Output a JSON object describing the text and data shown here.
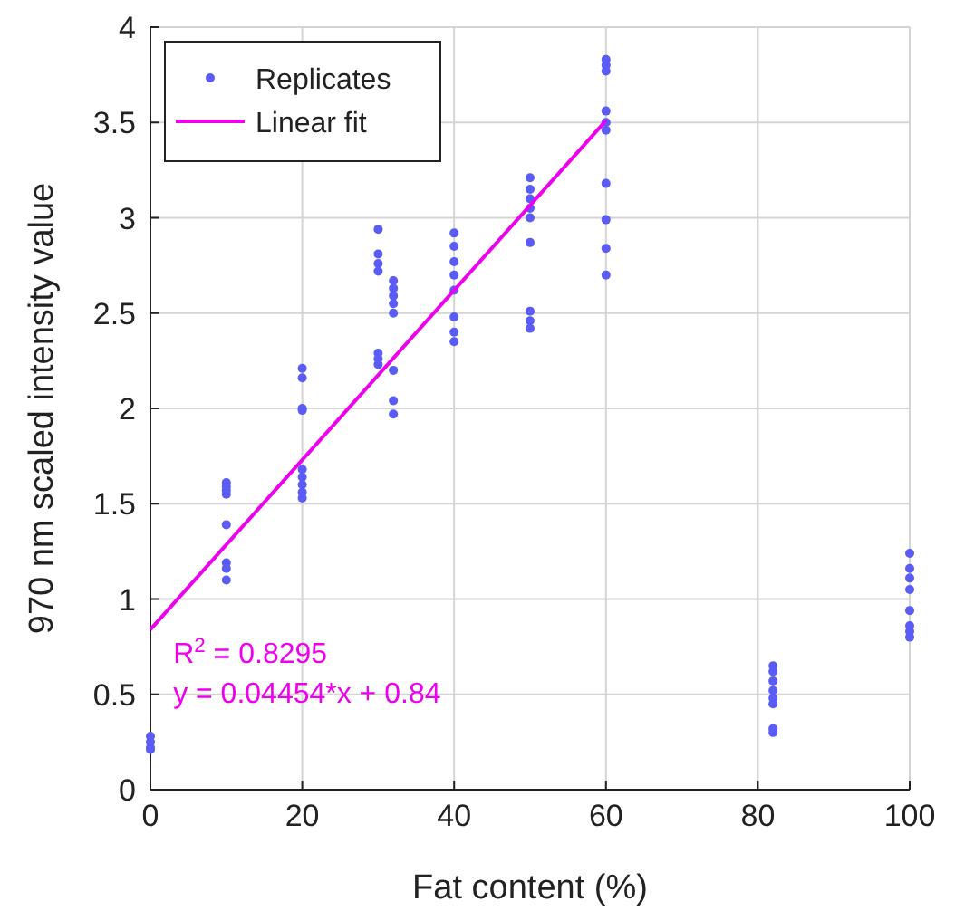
{
  "chart_data": {
    "type": "scatter",
    "xlabel": "Fat content (%)",
    "ylabel": "970 nm scaled intensity value",
    "xlim": [
      0,
      100
    ],
    "xticks": [
      0,
      20,
      40,
      60,
      80,
      100
    ],
    "ylim": [
      0,
      4
    ],
    "yticks": [
      0,
      0.5,
      1,
      1.5,
      2,
      2.5,
      3,
      3.5,
      4
    ],
    "grid": true,
    "legend": "top left",
    "series": [
      {
        "name": "Replicates",
        "marker": "circle",
        "color": "#5b5bf5",
        "x": [
          0,
          0,
          0,
          0,
          10,
          10,
          10,
          10,
          10,
          10,
          10,
          10,
          20,
          20,
          20,
          20,
          20,
          20,
          20,
          20,
          20,
          30,
          30,
          30,
          30,
          30,
          30,
          30,
          32,
          32,
          32,
          32,
          32,
          32,
          32,
          32,
          40,
          40,
          40,
          40,
          40,
          40,
          40,
          40,
          50,
          50,
          50,
          50,
          50,
          50,
          50,
          50,
          50,
          60,
          60,
          60,
          60,
          60,
          60,
          60,
          60,
          60,
          60,
          82,
          82,
          82,
          82,
          82,
          82,
          82,
          82,
          100,
          100,
          100,
          100,
          100,
          100,
          100,
          100
        ],
        "values": [
          0.28,
          0.25,
          0.22,
          0.21,
          1.61,
          1.59,
          1.57,
          1.55,
          1.39,
          1.19,
          1.16,
          1.1,
          2.21,
          2.16,
          2.0,
          1.99,
          1.68,
          1.64,
          1.6,
          1.56,
          1.53,
          2.94,
          2.81,
          2.76,
          2.72,
          2.29,
          2.26,
          2.23,
          2.67,
          2.63,
          2.59,
          2.55,
          2.5,
          2.2,
          2.04,
          1.97,
          2.92,
          2.85,
          2.77,
          2.7,
          2.62,
          2.48,
          2.4,
          2.35,
          3.21,
          3.15,
          3.1,
          3.05,
          3.0,
          2.87,
          2.51,
          2.46,
          2.42,
          3.83,
          3.8,
          3.77,
          3.56,
          3.5,
          3.46,
          3.18,
          2.99,
          2.84,
          2.7,
          0.65,
          0.62,
          0.57,
          0.52,
          0.48,
          0.45,
          0.32,
          0.3,
          1.24,
          1.16,
          1.11,
          1.05,
          0.94,
          0.86,
          0.83,
          0.8
        ]
      },
      {
        "name": "Linear fit",
        "type": "line",
        "marker": "none",
        "color": "#ee00ee",
        "x": [
          0,
          60
        ],
        "values": [
          0.84,
          3.51
        ]
      }
    ],
    "annotations": [
      "R$^{2}$ = 0.8295",
      "y = 0.04454*x + 0.84"
    ]
  }
}
